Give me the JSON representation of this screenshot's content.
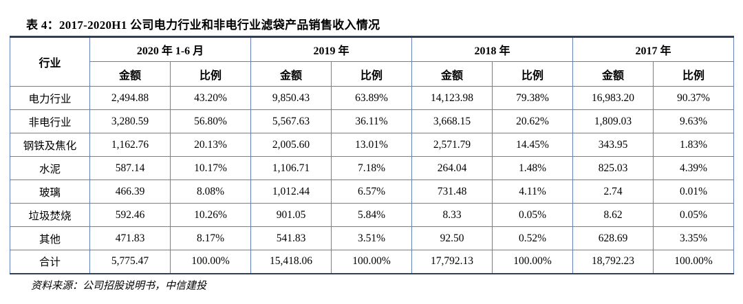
{
  "title": "表 4：2017-2020H1 公司电力行业和非电行业滤袋产品销售收入情况",
  "source_note": "资料来源：公司招股说明书，中信建投",
  "colors": {
    "frame_dark": "#333f50",
    "grid_blue": "#6180bb",
    "background": "#ffffff",
    "text": "#000000"
  },
  "table": {
    "industry_header": "行业",
    "period_headers": [
      "2020 年 1-6 月",
      "2019 年",
      "2018 年",
      "2017 年"
    ],
    "sub_headers": {
      "amount": "金额",
      "ratio": "比例"
    },
    "rows": [
      {
        "industry": "电力行业",
        "values": [
          "2,494.88",
          "43.20%",
          "9,850.43",
          "63.89%",
          "14,123.98",
          "79.38%",
          "16,983.20",
          "90.37%"
        ]
      },
      {
        "industry": "非电行业",
        "values": [
          "3,280.59",
          "56.80%",
          "5,567.63",
          "36.11%",
          "3,668.15",
          "20.62%",
          "1,809.03",
          "9.63%"
        ]
      },
      {
        "industry": "钢铁及焦化",
        "values": [
          "1,162.76",
          "20.13%",
          "2,005.60",
          "13.01%",
          "2,571.79",
          "14.45%",
          "343.95",
          "1.83%"
        ]
      },
      {
        "industry": "水泥",
        "values": [
          "587.14",
          "10.17%",
          "1,106.71",
          "7.18%",
          "264.04",
          "1.48%",
          "825.03",
          "4.39%"
        ]
      },
      {
        "industry": "玻璃",
        "values": [
          "466.39",
          "8.08%",
          "1,012.44",
          "6.57%",
          "731.48",
          "4.11%",
          "2.74",
          "0.01%"
        ]
      },
      {
        "industry": "垃圾焚烧",
        "values": [
          "592.46",
          "10.26%",
          "901.05",
          "5.84%",
          "8.33",
          "0.05%",
          "8.62",
          "0.05%"
        ]
      },
      {
        "industry": "其他",
        "values": [
          "471.83",
          "8.17%",
          "541.83",
          "3.51%",
          "92.50",
          "0.52%",
          "628.69",
          "3.35%"
        ]
      },
      {
        "industry": "合计",
        "values": [
          "5,775.47",
          "100.00%",
          "15,418.06",
          "100.00%",
          "17,792.13",
          "100.00%",
          "18,792.23",
          "100.00%"
        ]
      }
    ]
  }
}
